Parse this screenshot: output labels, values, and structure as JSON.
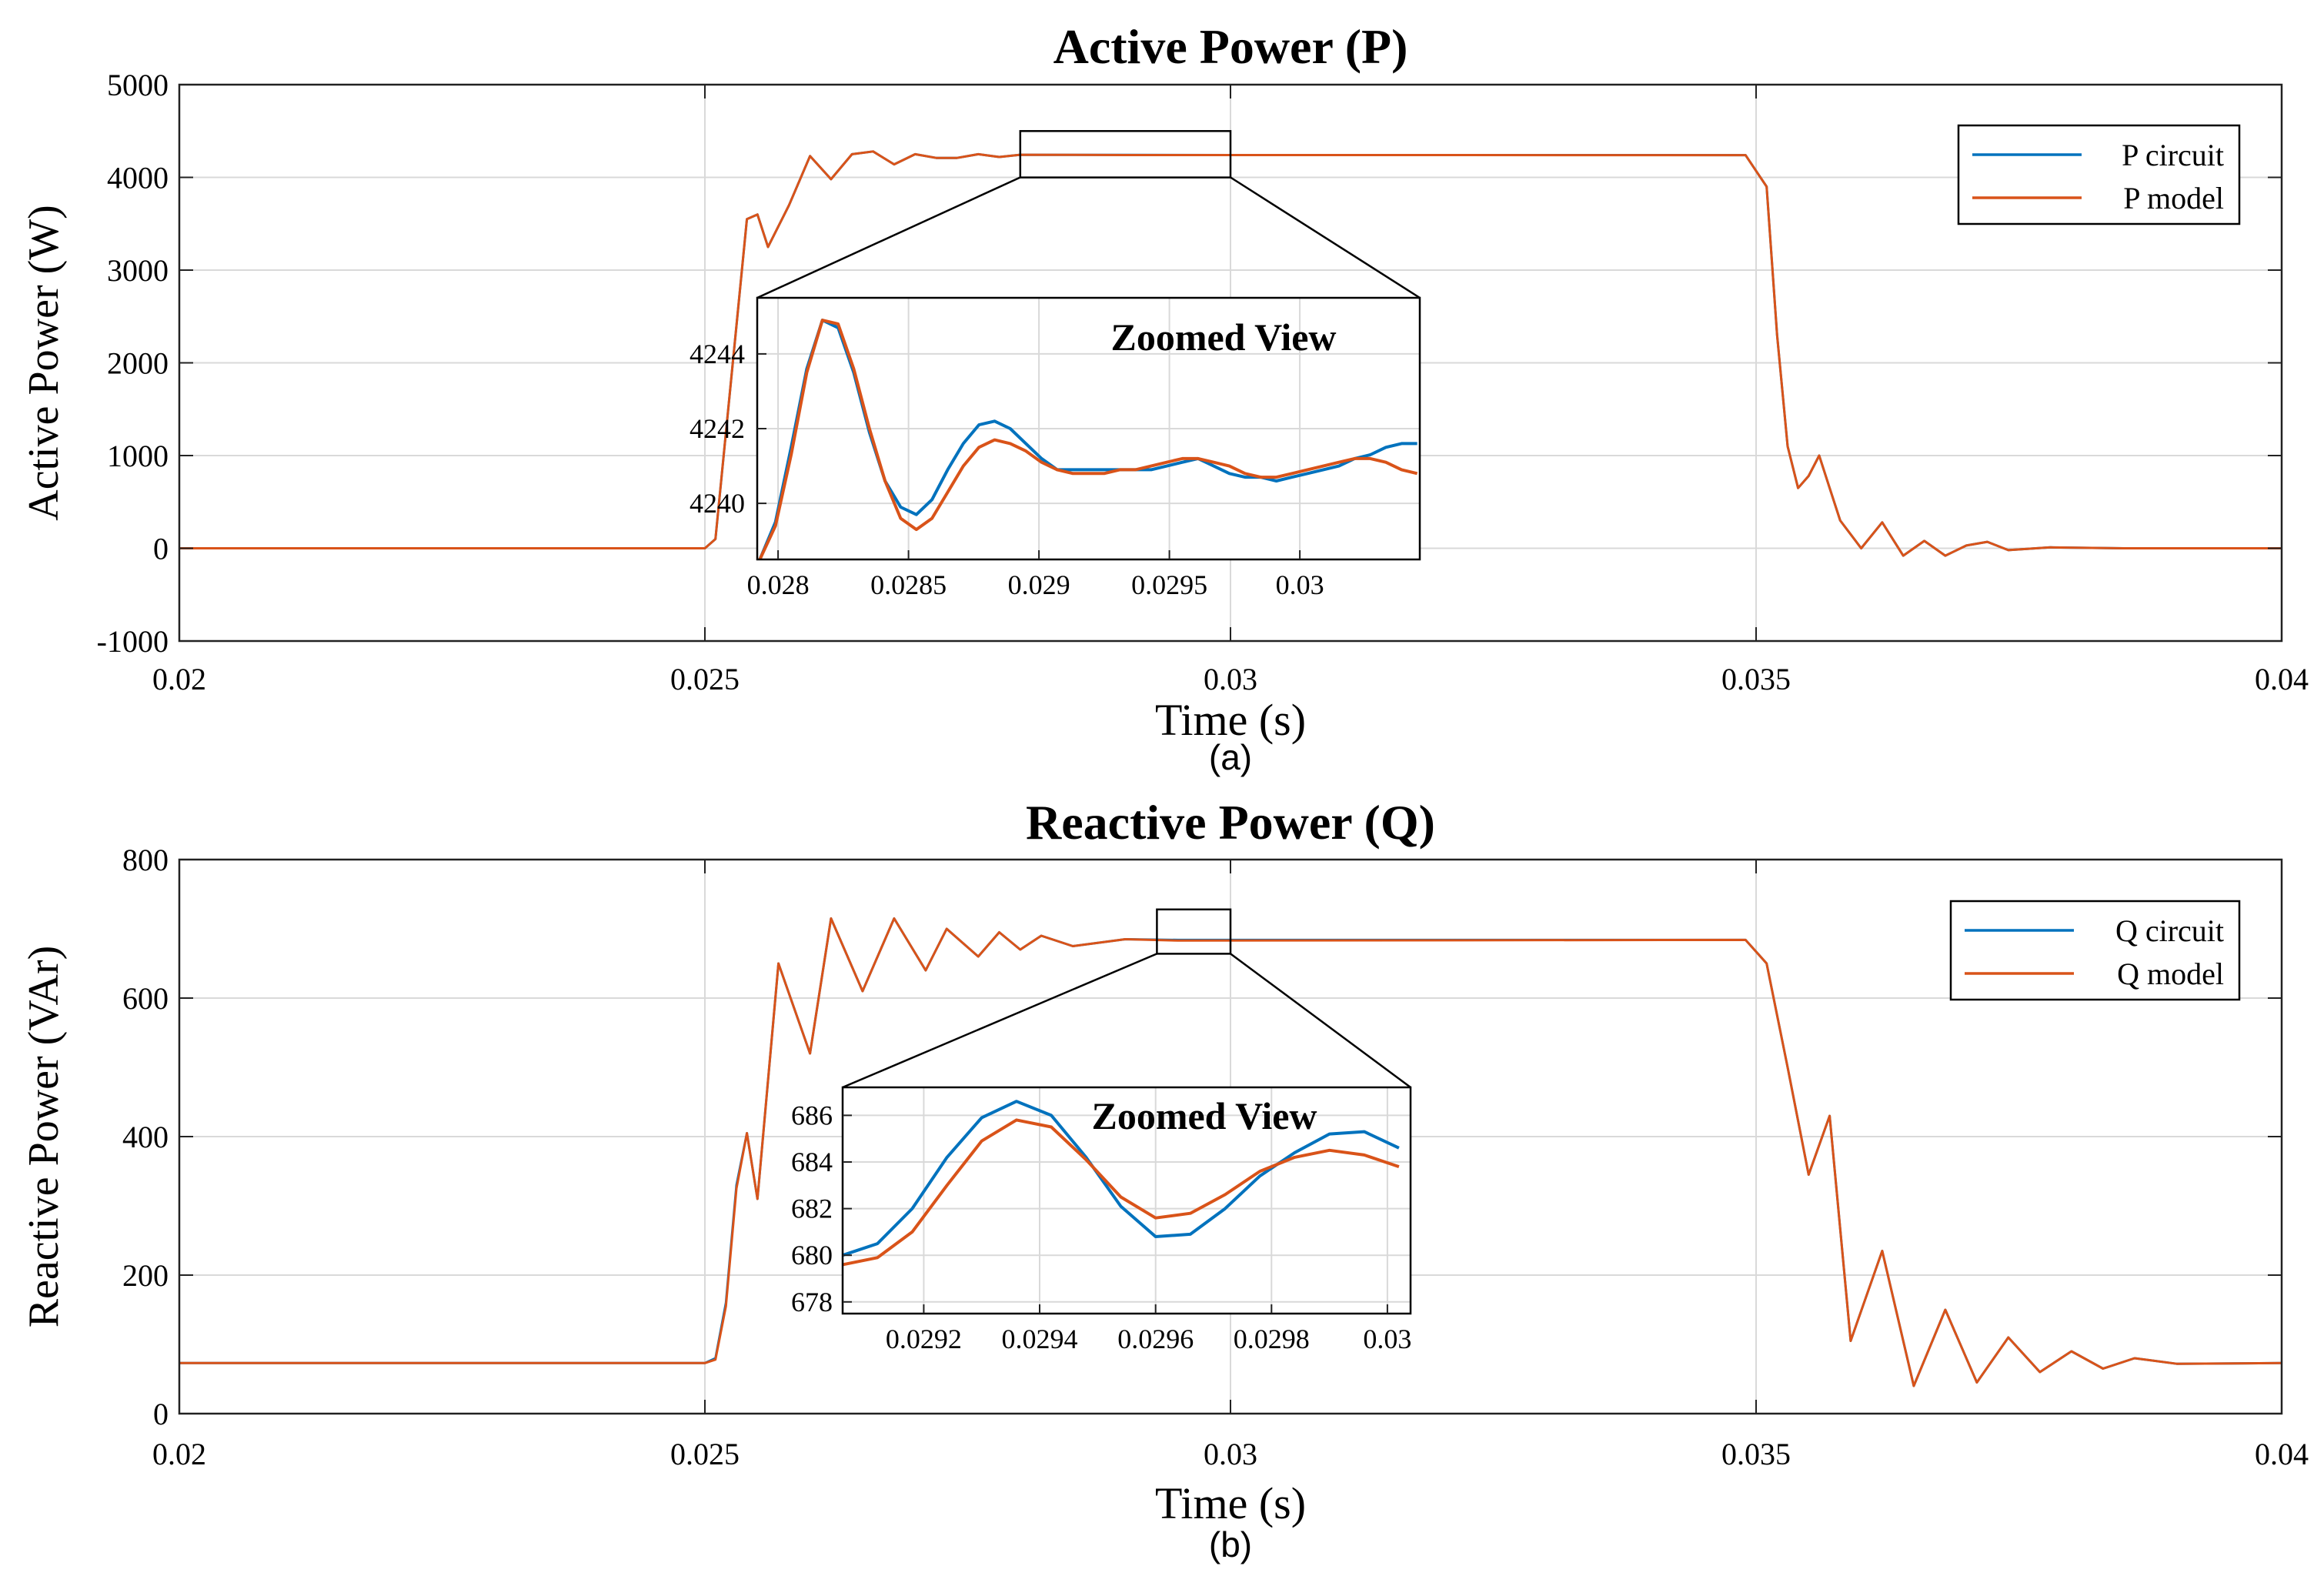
{
  "colors": {
    "circuit": "#0072BD",
    "model": "#D95319",
    "grid": "#d9d9d9",
    "axis": "#222222"
  },
  "chart_data": [
    {
      "type": "line",
      "title": "Active Power (P)",
      "xlabel": "Time (s)",
      "ylabel": "Active Power (W)",
      "caption": "(a)",
      "xlim": [
        0.02,
        0.04
      ],
      "ylim": [
        -1000,
        5000
      ],
      "xticks": [
        0.02,
        0.025,
        0.03,
        0.035,
        0.04
      ],
      "xtick_labels": [
        "0.02",
        "0.025",
        "0.03",
        "0.035",
        "0.04"
      ],
      "yticks": [
        -1000,
        0,
        1000,
        2000,
        3000,
        4000,
        5000
      ],
      "ytick_labels": [
        "-1000",
        "0",
        "1000",
        "2000",
        "3000",
        "4000",
        "5000"
      ],
      "legend": [
        "P circuit",
        "P model"
      ],
      "legend_location": "top-right",
      "grid": true,
      "x": [
        0.02,
        0.025,
        0.0251,
        0.0253,
        0.0254,
        0.0255,
        0.0256,
        0.0258,
        0.026,
        0.0262,
        0.0264,
        0.0266,
        0.0268,
        0.027,
        0.0272,
        0.0274,
        0.0276,
        0.0278,
        0.028,
        0.029,
        0.03,
        0.034,
        0.0349,
        0.0351,
        0.0352,
        0.0353,
        0.0354,
        0.0355,
        0.0356,
        0.0357,
        0.0358,
        0.036,
        0.0362,
        0.0364,
        0.0366,
        0.0368,
        0.037,
        0.0372,
        0.0374,
        0.0378,
        0.0385,
        0.04
      ],
      "series": [
        {
          "name": "P circuit",
          "values": [
            0,
            0,
            100,
            2400,
            3550,
            3600,
            3250,
            3700,
            4230,
            3980,
            4250,
            4280,
            4140,
            4250,
            4210,
            4210,
            4250,
            4220,
            4244,
            4242,
            4241,
            4241,
            4240,
            3900,
            2300,
            1100,
            650,
            780,
            1000,
            650,
            300,
            0,
            280,
            -80,
            80,
            -80,
            30,
            70,
            -20,
            10,
            0,
            0
          ]
        },
        {
          "name": "P model",
          "values": [
            0,
            0,
            100,
            2400,
            3550,
            3600,
            3250,
            3700,
            4230,
            3980,
            4250,
            4280,
            4140,
            4250,
            4210,
            4210,
            4250,
            4220,
            4244,
            4241,
            4241,
            4240,
            4240,
            3900,
            2300,
            1100,
            650,
            780,
            1000,
            650,
            300,
            0,
            280,
            -80,
            80,
            -80,
            30,
            70,
            -20,
            10,
            0,
            0
          ]
        }
      ],
      "zoom_box": {
        "xlim": [
          0.028,
          0.03
        ],
        "ylim": [
          4000,
          4500
        ]
      },
      "inset": {
        "title": "Zoomed View",
        "xlim": [
          0.02792,
          0.03046
        ],
        "ylim": [
          4238.5,
          4245.5
        ],
        "xticks": [
          0.028,
          0.0285,
          0.029,
          0.0295,
          0.03
        ],
        "xtick_labels": [
          "0.028",
          "0.0285",
          "0.029",
          "0.0295",
          "0.03"
        ],
        "yticks": [
          4240,
          4242,
          4244
        ],
        "ytick_labels": [
          "4240",
          "4242",
          "4244"
        ],
        "x": [
          0.02793,
          0.02799,
          0.02805,
          0.02811,
          0.02817,
          0.02823,
          0.02829,
          0.02835,
          0.02841,
          0.02847,
          0.02853,
          0.02859,
          0.02865,
          0.02871,
          0.02877,
          0.02883,
          0.02889,
          0.02895,
          0.02901,
          0.02907,
          0.02913,
          0.02919,
          0.02925,
          0.02931,
          0.02937,
          0.02943,
          0.02949,
          0.02955,
          0.02961,
          0.02967,
          0.02973,
          0.02979,
          0.02985,
          0.02991,
          0.02997,
          0.03003,
          0.03009,
          0.03015,
          0.03021,
          0.03027,
          0.03033,
          0.03039,
          0.03045
        ],
        "series": [
          {
            "name": "P circuit",
            "values": [
              4238.5,
              4239.5,
              4241.5,
              4243.6,
              4244.9,
              4244.7,
              4243.5,
              4241.9,
              4240.6,
              4239.9,
              4239.7,
              4240.1,
              4240.9,
              4241.6,
              4242.1,
              4242.2,
              4242.0,
              4241.6,
              4241.2,
              4240.9,
              4240.9,
              4240.9,
              4240.9,
              4240.9,
              4240.9,
              4240.9,
              4241.0,
              4241.1,
              4241.2,
              4241.0,
              4240.8,
              4240.7,
              4240.7,
              4240.6,
              4240.7,
              4240.8,
              4240.9,
              4241.0,
              4241.2,
              4241.3,
              4241.5,
              4241.6,
              4241.6
            ]
          },
          {
            "name": "P model",
            "values": [
              4238.5,
              4239.4,
              4241.3,
              4243.5,
              4244.9,
              4244.8,
              4243.6,
              4242.0,
              4240.6,
              4239.6,
              4239.3,
              4239.6,
              4240.3,
              4241.0,
              4241.5,
              4241.7,
              4241.6,
              4241.4,
              4241.1,
              4240.9,
              4240.8,
              4240.8,
              4240.8,
              4240.9,
              4240.9,
              4241.0,
              4241.1,
              4241.2,
              4241.2,
              4241.1,
              4241.0,
              4240.8,
              4240.7,
              4240.7,
              4240.8,
              4240.9,
              4241.0,
              4241.1,
              4241.2,
              4241.2,
              4241.1,
              4240.9,
              4240.8
            ]
          }
        ]
      }
    },
    {
      "type": "line",
      "title": "Reactive Power (Q)",
      "xlabel": "Time (s)",
      "ylabel": "Reactive Power (VAr)",
      "caption": "(b)",
      "xlim": [
        0.02,
        0.04
      ],
      "ylim": [
        0,
        800
      ],
      "xticks": [
        0.02,
        0.025,
        0.03,
        0.035,
        0.04
      ],
      "xtick_labels": [
        "0.02",
        "0.025",
        "0.03",
        "0.035",
        "0.04"
      ],
      "yticks": [
        0,
        200,
        400,
        600,
        800
      ],
      "ytick_labels": [
        "0",
        "200",
        "400",
        "600",
        "800"
      ],
      "legend": [
        "Q circuit",
        "Q model"
      ],
      "legend_location": "top-right",
      "grid": true,
      "x": [
        0.02,
        0.025,
        0.0251,
        0.0252,
        0.0253,
        0.0254,
        0.0255,
        0.0257,
        0.026,
        0.0262,
        0.0265,
        0.0268,
        0.0271,
        0.0273,
        0.0276,
        0.0278,
        0.028,
        0.0282,
        0.0285,
        0.029,
        0.0295,
        0.0349,
        0.0351,
        0.0353,
        0.0355,
        0.0357,
        0.0359,
        0.0362,
        0.0365,
        0.0368,
        0.0371,
        0.0374,
        0.0377,
        0.038,
        0.0383,
        0.0386,
        0.039,
        0.04
      ],
      "series": [
        {
          "name": "Q circuit",
          "values": [
            73,
            73,
            80,
            160,
            330,
            405,
            310,
            650,
            520,
            715,
            610,
            715,
            640,
            700,
            660,
            695,
            670,
            690,
            675,
            685,
            684,
            684,
            650,
            500,
            345,
            430,
            105,
            235,
            40,
            150,
            45,
            110,
            60,
            90,
            65,
            80,
            72,
            73
          ]
        },
        {
          "name": "Q model",
          "values": [
            73,
            73,
            78,
            155,
            325,
            405,
            310,
            650,
            520,
            715,
            610,
            715,
            640,
            700,
            660,
            695,
            670,
            690,
            675,
            685,
            683,
            684,
            650,
            500,
            345,
            430,
            105,
            235,
            40,
            150,
            45,
            110,
            60,
            90,
            65,
            80,
            72,
            73
          ]
        }
      ],
      "zoom_box": {
        "xlim": [
          0.0293,
          0.03
        ],
        "ylim": [
          664,
          728
        ]
      },
      "inset": {
        "title": "Zoomed View",
        "xlim": [
          0.02906,
          0.03004
        ],
        "ylim": [
          677.5,
          687.2
        ],
        "xticks": [
          0.0292,
          0.0294,
          0.0296,
          0.0298,
          0.03
        ],
        "xtick_labels": [
          "0.0292",
          "0.0294",
          "0.0296",
          "0.0298",
          "0.03"
        ],
        "yticks": [
          678,
          680,
          682,
          684,
          686
        ],
        "ytick_labels": [
          "678",
          "680",
          "682",
          "684",
          "686"
        ],
        "x": [
          0.02906,
          0.02912,
          0.02918,
          0.02924,
          0.0293,
          0.02936,
          0.02942,
          0.02948,
          0.02954,
          0.0296,
          0.02966,
          0.02972,
          0.02978,
          0.02984,
          0.0299,
          0.02996,
          0.03002
        ],
        "series": [
          {
            "name": "Q circuit",
            "values": [
              680.0,
              680.5,
              682.0,
              684.2,
              685.9,
              686.6,
              686.0,
              684.2,
              682.1,
              680.8,
              680.9,
              682.0,
              683.4,
              684.4,
              685.2,
              685.3,
              684.6
            ]
          },
          {
            "name": "Q model",
            "values": [
              679.6,
              679.9,
              681.0,
              683.0,
              684.9,
              685.8,
              685.5,
              684.1,
              682.5,
              681.6,
              681.8,
              682.6,
              683.6,
              684.2,
              684.5,
              684.3,
              683.8
            ]
          }
        ]
      }
    }
  ]
}
